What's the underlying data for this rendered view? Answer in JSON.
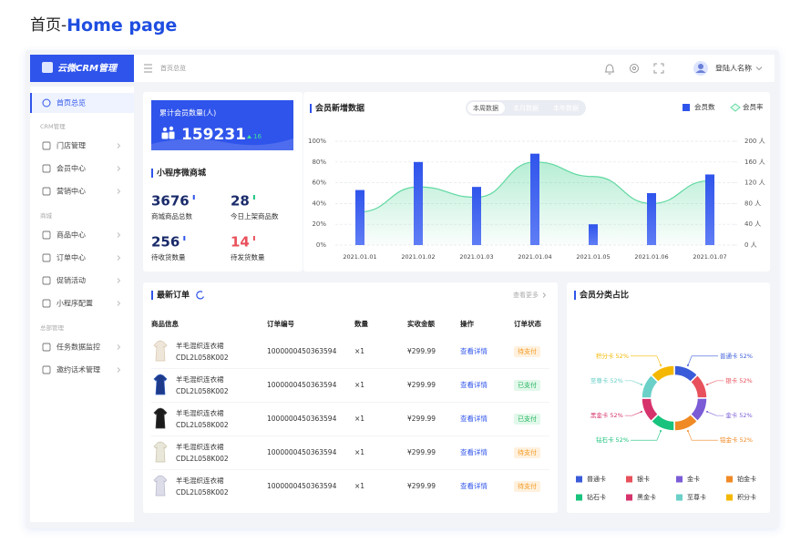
{
  "header": {
    "prefix": "首页-",
    "title": "Home page"
  },
  "app": {
    "logo": "云微CRM管理",
    "breadcrumb": "首页总览",
    "user": "登陆人名称"
  },
  "sidebar": {
    "home": "首页总览",
    "groups": [
      {
        "title": "CRM管理",
        "items": [
          "门店管理",
          "会员中心",
          "营销中心"
        ]
      },
      {
        "title": "商城",
        "items": [
          "商品中心",
          "订单中心",
          "促销活动",
          "小程序配置"
        ]
      },
      {
        "title": "总部管理",
        "items": [
          "任务数据监控",
          "邀约话术管理"
        ]
      }
    ]
  },
  "summary": {
    "label": "累计会员数量(人)",
    "value": 159231,
    "change": 16
  },
  "mall": {
    "title": "小程序微商城",
    "stats": [
      {
        "value": 3676,
        "label": "商城商品总数"
      },
      {
        "value": 28,
        "label": "今日上架商品数"
      },
      {
        "value": 256,
        "label": "待收货数量"
      },
      {
        "value": 14,
        "label": "待发货数量"
      }
    ]
  },
  "chart_data": [
    {
      "type": "bar",
      "title": "会员新增数据",
      "tabs": [
        "本周数据",
        "本月数据",
        "本年数据"
      ],
      "categories": [
        "2021.01.01",
        "2021.01.02",
        "2021.01.03",
        "2021.01.04",
        "2021.01.05",
        "2021.01.06",
        "2021.01.07"
      ],
      "series": [
        {
          "name": "会员数",
          "color": "#2f54eb",
          "axis": "y2",
          "values": [
            106,
            160,
            112,
            176,
            40,
            100,
            136
          ]
        },
        {
          "name": "会员率",
          "type": "area",
          "color": "#5fd8a0",
          "values": [
            32,
            56,
            46,
            80,
            66,
            40,
            62
          ]
        }
      ],
      "ylim": [
        0,
        100
      ],
      "yticks": [
        {
          "value": 0,
          "label": "0%"
        },
        {
          "value": 20,
          "label": "20%"
        },
        {
          "value": 40,
          "label": "40%"
        },
        {
          "value": 60,
          "label": "60%"
        },
        {
          "value": 80,
          "label": "80%"
        },
        {
          "value": 100,
          "label": "100%"
        }
      ],
      "y2lim": [
        0,
        200
      ],
      "y2ticks": [
        {
          "value": 0,
          "label": "0 人"
        },
        {
          "value": 40,
          "label": "40 人"
        },
        {
          "value": 80,
          "label": "80 人"
        },
        {
          "value": 120,
          "label": "120 人"
        },
        {
          "value": 160,
          "label": "160 人"
        },
        {
          "value": 200,
          "label": "200 人"
        }
      ],
      "grid": true
    },
    {
      "type": "pie",
      "title": "会员分类占比",
      "categories": [
        "普通卡",
        "银卡",
        "金卡",
        "铂金卡",
        "钻石卡",
        "黑金卡",
        "至尊卡",
        "积分卡"
      ],
      "values": [
        52,
        52,
        52,
        52,
        52,
        52,
        52,
        52
      ],
      "value_labels": [
        "52%",
        "52%",
        "52%",
        "52%",
        "52%",
        "52%",
        "52%",
        "52%"
      ],
      "colors": [
        "#3a5bd9",
        "#e8505b",
        "#7b5cd6",
        "#f08a24",
        "#19c37d",
        "#d6336c",
        "#6ad0c8",
        "#f5b800"
      ]
    }
  ],
  "orders": {
    "title": "最新订单",
    "more": "查看更多",
    "columns": [
      "商品信息",
      "订单编号",
      "数量",
      "实收金额",
      "操作",
      "订单状态"
    ],
    "rows": [
      {
        "name": "羊毛混织连衣裙",
        "sku": "CDL2L058K002",
        "order": "1000000450363594",
        "qty": "×1",
        "price": "¥299.99",
        "action": "查看详情",
        "status": "待支付"
      },
      {
        "name": "羊毛混织连衣裙",
        "sku": "CDL2L058K002",
        "order": "1000000450363594",
        "qty": "×1",
        "price": "¥299.99",
        "action": "查看详情",
        "status": "已支付"
      },
      {
        "name": "羊毛混织连衣裙",
        "sku": "CDL2L058K002",
        "order": "1000000450363594",
        "qty": "×1",
        "price": "¥299.99",
        "action": "查看详情",
        "status": "已支付"
      },
      {
        "name": "羊毛混织连衣裙",
        "sku": "CDL2L058K002",
        "order": "1000000450363594",
        "qty": "×1",
        "price": "¥299.99",
        "action": "查看详情",
        "status": "待支付"
      },
      {
        "name": "羊毛混织连衣裙",
        "sku": "CDL2L058K002",
        "order": "1000000450363594",
        "qty": "×1",
        "price": "¥299.99",
        "action": "查看详情",
        "status": "待支付"
      }
    ]
  }
}
